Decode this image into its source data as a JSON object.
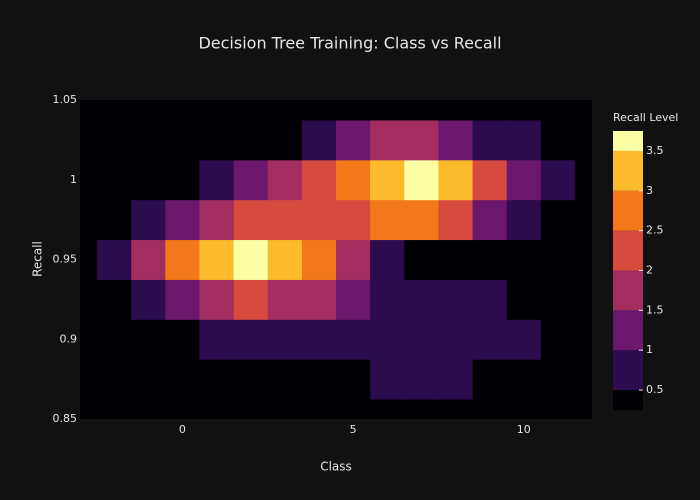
{
  "chart_data": {
    "type": "contour",
    "title": "Decision Tree Training: Class vs Recall",
    "x_label": "Class",
    "y_label": "Recall",
    "colorbar_title": "Recall Level",
    "x": [
      -3,
      -2,
      -1,
      0,
      1,
      2,
      3,
      4,
      5,
      6,
      7,
      8,
      9,
      10,
      11,
      12
    ],
    "y": [
      0.85,
      0.875,
      0.9,
      0.925,
      0.95,
      0.975,
      1.0,
      1.025,
      1.05
    ],
    "z": [
      [
        0,
        0,
        0,
        0,
        0,
        0,
        0,
        0,
        0,
        0,
        0,
        0,
        0,
        0,
        0,
        0
      ],
      [
        0,
        0,
        0,
        0,
        0,
        0,
        0,
        0,
        0.4,
        0.6,
        0.7,
        0.6,
        0.4,
        0,
        0,
        0
      ],
      [
        0,
        0,
        0.1,
        0.3,
        0.5,
        0.6,
        0.7,
        0.7,
        0.7,
        0.8,
        0.8,
        0.8,
        0.7,
        0.5,
        0.1,
        0
      ],
      [
        0,
        0.3,
        0.7,
        1.3,
        1.9,
        2.1,
        1.9,
        1.5,
        1.1,
        0.7,
        0.6,
        0.6,
        0.5,
        0.2,
        0,
        0
      ],
      [
        0.2,
        0.8,
        1.5,
        2.6,
        3.4,
        3.8,
        3.4,
        2.6,
        1.5,
        0.8,
        0.2,
        0,
        0,
        0,
        0,
        0
      ],
      [
        0,
        0.3,
        0.7,
        1.2,
        1.7,
        2.0,
        2.2,
        2.3,
        2.4,
        2.5,
        2.5,
        2.0,
        1.2,
        0.7,
        0.4,
        0
      ],
      [
        0,
        0,
        0.1,
        0.3,
        0.6,
        1.0,
        1.6,
        2.1,
        2.6,
        3.3,
        3.8,
        3.3,
        2.2,
        1.3,
        0.7,
        0.2
      ],
      [
        0,
        0,
        0,
        0,
        0,
        0,
        0.2,
        0.6,
        1.0,
        1.6,
        1.8,
        1.4,
        0.9,
        0.5,
        0.2,
        0
      ],
      [
        0,
        0,
        0,
        0,
        0,
        0,
        0,
        0,
        0.2,
        0.3,
        0.3,
        0.2,
        0,
        0,
        0,
        0
      ]
    ],
    "levels": [
      0.5,
      1,
      1.5,
      2,
      2.5,
      3,
      3.5
    ],
    "colors": [
      "#000004",
      "#2c0b4e",
      "#6b176e",
      "#a42d60",
      "#d74b3f",
      "#f37819",
      "#fbbb2d",
      "#fcfea4"
    ],
    "xlim": [
      -3,
      12
    ],
    "ylim": [
      0.85,
      1.05
    ],
    "xticks": [
      0,
      5,
      10
    ],
    "yticks": [
      0.85,
      0.9,
      0.95,
      1,
      1.05
    ],
    "zlim": [
      0.25,
      3.75
    ],
    "zticks": [
      0.5,
      1,
      1.5,
      2,
      2.5,
      3,
      3.5
    ],
    "grid": false
  }
}
